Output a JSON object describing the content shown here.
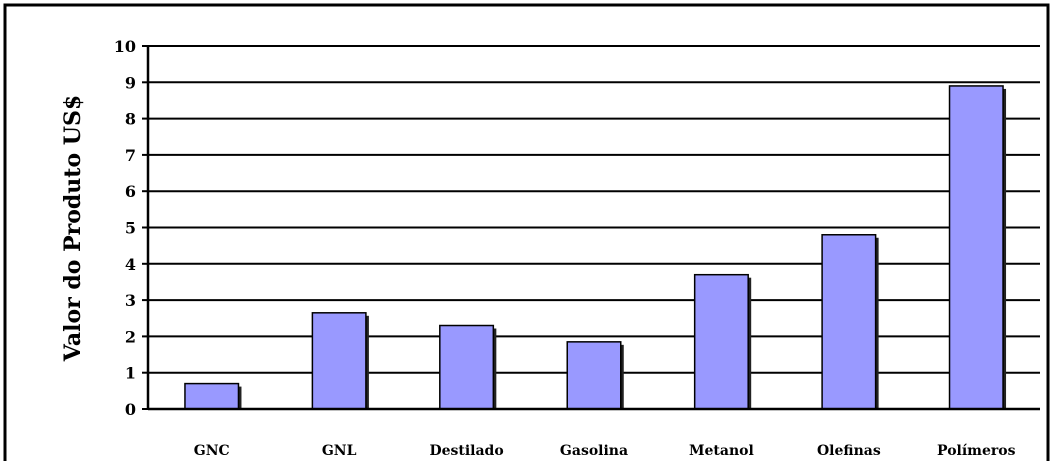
{
  "chart_data": {
    "type": "bar",
    "title": "",
    "xlabel": "",
    "ylabel": "Valor do Produto US$",
    "categories": [
      "GNC",
      "GNL",
      "Destilado",
      "Gasolina",
      "Metanol",
      "Olefinas",
      "Polímeros"
    ],
    "values": [
      0.7,
      2.65,
      2.3,
      1.85,
      3.7,
      4.8,
      8.9
    ],
    "ylim": [
      0,
      10
    ],
    "yticks": [
      0,
      1,
      2,
      3,
      4,
      5,
      6,
      7,
      8,
      9,
      10
    ],
    "grid": true,
    "legend": "none",
    "colors": {
      "bar_fill": "#9999ff",
      "bar_stroke": "#000000",
      "grid": "#000000",
      "frame": "#000000"
    }
  }
}
